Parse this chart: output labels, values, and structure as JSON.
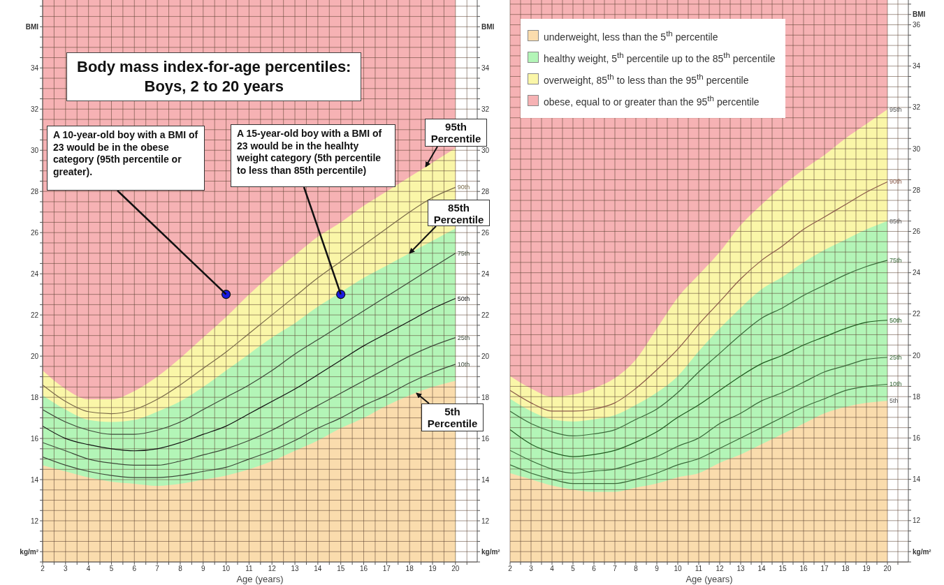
{
  "chart_data": [
    {
      "type": "line",
      "title": "Body mass index-for-age percentiles:\nBoys, 2 to 20 years",
      "xlabel": "Age (years)",
      "x": [
        2,
        3,
        4,
        5,
        6,
        7,
        8,
        9,
        10,
        11,
        12,
        13,
        14,
        15,
        16,
        17,
        18,
        19,
        20
      ],
      "xlim": [
        2,
        20.95
      ],
      "xticks": [
        2,
        {
          "value": 2.5,
          "label": null
        },
        3,
        {
          "value": 3.5,
          "label": null
        },
        4,
        {
          "value": 4.5,
          "label": null
        },
        5,
        {
          "value": 5.5,
          "label": null
        },
        6,
        {
          "value": 6.5,
          "label": null
        },
        7,
        {
          "value": 7.5,
          "label": null
        },
        8,
        {
          "value": 8.5,
          "label": null
        },
        9,
        {
          "value": 9.5,
          "label": null
        },
        10,
        {
          "value": 10.5,
          "label": null
        },
        11,
        {
          "value": 11.5,
          "label": null
        },
        12,
        {
          "value": 12.5,
          "label": null
        },
        13,
        {
          "value": 13.5,
          "label": null
        },
        14,
        {
          "value": 14.5,
          "label": null
        },
        15,
        {
          "value": 15.5,
          "label": null
        },
        16,
        {
          "value": 16.5,
          "label": null
        },
        17,
        {
          "value": 17.5,
          "label": null
        },
        18,
        {
          "value": 18.5,
          "label": null
        },
        19,
        {
          "value": 19.5,
          "label": null
        },
        20,
        {
          "value": 20.5,
          "label": null
        }
      ],
      "ylim": [
        10,
        37.3
      ],
      "yticks": [
        {
          "value": 10,
          "label": null
        },
        {
          "value": 10.5,
          "label": "kg/m²"
        },
        {
          "value": 11,
          "label": null
        },
        {
          "value": 11.5,
          "label": null
        },
        12,
        {
          "value": 12.5,
          "label": null
        },
        {
          "value": 13,
          "label": null
        },
        {
          "value": 13.5,
          "label": null
        },
        14,
        {
          "value": 14.5,
          "label": null
        },
        {
          "value": 15,
          "label": null
        },
        {
          "value": 15.5,
          "label": null
        },
        16,
        {
          "value": 16.5,
          "label": null
        },
        {
          "value": 17,
          "label": null
        },
        {
          "value": 17.5,
          "label": null
        },
        18,
        {
          "value": 18.5,
          "label": null
        },
        {
          "value": 19,
          "label": null
        },
        {
          "value": 19.5,
          "label": null
        },
        20,
        {
          "value": 20.5,
          "label": null
        },
        {
          "value": 21,
          "label": null
        },
        {
          "value": 21.5,
          "label": null
        },
        22,
        {
          "value": 22.5,
          "label": null
        },
        {
          "value": 23,
          "label": null
        },
        {
          "value": 23.5,
          "label": null
        },
        24,
        {
          "value": 24.5,
          "label": null
        },
        {
          "value": 25,
          "label": null
        },
        {
          "value": 25.5,
          "label": null
        },
        26,
        {
          "value": 26.5,
          "label": null
        },
        {
          "value": 27,
          "label": null
        },
        {
          "value": 27.5,
          "label": null
        },
        28,
        {
          "value": 28.5,
          "label": null
        },
        {
          "value": 29,
          "label": null
        },
        {
          "value": 29.5,
          "label": null
        },
        30,
        {
          "value": 30.5,
          "label": null
        },
        {
          "value": 31,
          "label": null
        },
        {
          "value": 31.5,
          "label": null
        },
        32,
        {
          "value": 32.5,
          "label": null
        },
        {
          "value": 33,
          "label": null
        },
        {
          "value": 33.5,
          "label": null
        },
        34,
        {
          "value": 34.5,
          "label": null
        },
        {
          "value": 35,
          "label": null
        },
        {
          "value": 35.5,
          "label": null
        },
        {
          "value": 36,
          "label": "BMI"
        },
        {
          "value": 36.5,
          "label": null
        },
        {
          "value": 37,
          "label": null
        }
      ],
      "y2lim": [
        10,
        37.3
      ],
      "y2ticks": [
        {
          "value": 10,
          "label": null
        },
        {
          "value": 10.5,
          "label": "kg/m²"
        },
        {
          "value": 11,
          "label": null
        },
        {
          "value": 11.5,
          "label": null
        },
        12,
        {
          "value": 12.5,
          "label": null
        },
        {
          "value": 13,
          "label": null
        },
        {
          "value": 13.5,
          "label": null
        },
        14,
        {
          "value": 14.5,
          "label": null
        },
        {
          "value": 15,
          "label": null
        },
        {
          "value": 15.5,
          "label": null
        },
        16,
        {
          "value": 16.5,
          "label": null
        },
        {
          "value": 17,
          "label": null
        },
        {
          "value": 17.5,
          "label": null
        },
        18,
        {
          "value": 18.5,
          "label": null
        },
        {
          "value": 19,
          "label": null
        },
        {
          "value": 19.5,
          "label": null
        },
        20,
        {
          "value": 20.5,
          "label": null
        },
        {
          "value": 21,
          "label": null
        },
        {
          "value": 21.5,
          "label": null
        },
        22,
        {
          "value": 22.5,
          "label": null
        },
        {
          "value": 23,
          "label": null
        },
        {
          "value": 23.5,
          "label": null
        },
        24,
        {
          "value": 24.5,
          "label": null
        },
        {
          "value": 25,
          "label": null
        },
        {
          "value": 25.5,
          "label": null
        },
        26,
        {
          "value": 26.5,
          "label": null
        },
        {
          "value": 27,
          "label": null
        },
        {
          "value": 27.5,
          "label": null
        },
        28,
        {
          "value": 28.5,
          "label": null
        },
        {
          "value": 29,
          "label": null
        },
        {
          "value": 29.5,
          "label": null
        },
        30,
        {
          "value": 30.5,
          "label": null
        },
        {
          "value": 31,
          "label": null
        },
        {
          "value": 31.5,
          "label": null
        },
        32,
        {
          "value": 32.5,
          "label": null
        },
        {
          "value": 33,
          "label": null
        },
        {
          "value": 33.5,
          "label": null
        },
        34,
        {
          "value": 34.5,
          "label": null
        },
        {
          "value": 35,
          "label": null
        },
        {
          "value": 35.5,
          "label": null
        },
        {
          "value": 36,
          "label": "BMI"
        },
        {
          "value": 36.5,
          "label": null
        },
        {
          "value": 37,
          "label": null
        }
      ],
      "grid": true,
      "bands": [
        {
          "axis": "y",
          "from": 10,
          "to": 37.3,
          "color": "#f6b2b4"
        }
      ],
      "series": [
        {
          "type": "area",
          "color": "#fadcad",
          "values": [
            14.7,
            14.4,
            14.1,
            13.9,
            13.8,
            13.7,
            13.8,
            14.0,
            14.2,
            14.5,
            14.9,
            15.4,
            15.9,
            16.5,
            17.0,
            17.6,
            18.1,
            18.5,
            18.8
          ]
        },
        {
          "type": "area",
          "color": "#b3f5b7",
          "values": [
            18.1,
            17.4,
            16.9,
            16.8,
            16.9,
            17.3,
            17.8,
            18.5,
            19.3,
            20.1,
            20.9,
            21.6,
            22.4,
            23.1,
            23.8,
            24.4,
            25.0,
            25.6,
            26.2
          ]
        },
        {
          "type": "area",
          "color": "#faf6a8",
          "values": [
            19.3,
            18.4,
            17.9,
            17.9,
            18.3,
            19.0,
            19.9,
            20.9,
            21.9,
            23.0,
            24.0,
            24.9,
            25.8,
            26.5,
            27.3,
            28.0,
            28.7,
            29.4,
            30.1
          ]
        },
        {
          "name": "10th",
          "color": "#3e4a3a",
          "values": [
            15.1,
            14.7,
            14.4,
            14.2,
            14.1,
            14.1,
            14.2,
            14.4,
            14.6,
            15.0,
            15.4,
            15.9,
            16.5,
            17.0,
            17.6,
            18.1,
            18.7,
            19.2,
            19.6
          ]
        },
        {
          "name": "25th",
          "color": "#3e4a3a",
          "values": [
            15.8,
            15.4,
            15.0,
            14.8,
            14.7,
            14.7,
            14.9,
            15.2,
            15.5,
            15.9,
            16.4,
            17.0,
            17.6,
            18.2,
            18.8,
            19.4,
            20.0,
            20.5,
            20.9
          ]
        },
        {
          "name": "50th",
          "color": "#111111",
          "values": [
            16.6,
            16.0,
            15.7,
            15.5,
            15.4,
            15.5,
            15.8,
            16.2,
            16.6,
            17.2,
            17.8,
            18.4,
            19.1,
            19.8,
            20.5,
            21.1,
            21.7,
            22.3,
            22.8
          ]
        },
        {
          "name": "75th",
          "color": "#3e4a3a",
          "values": [
            17.4,
            16.8,
            16.4,
            16.2,
            16.2,
            16.4,
            16.8,
            17.4,
            18.0,
            18.6,
            19.3,
            20.1,
            20.8,
            21.5,
            22.2,
            22.9,
            23.6,
            24.3,
            25.0
          ]
        },
        {
          "name": "90th",
          "color": "#7a6a4a",
          "values": [
            18.6,
            17.8,
            17.3,
            17.2,
            17.4,
            17.9,
            18.6,
            19.4,
            20.2,
            21.1,
            22.0,
            22.9,
            23.8,
            24.6,
            25.4,
            26.2,
            27.0,
            27.7,
            28.2
          ]
        },
        {
          "type": "scatter",
          "color": "#1a1ae0",
          "marker": "circle",
          "x": [
            10,
            15
          ],
          "values": [
            23,
            23
          ]
        }
      ],
      "annotations": [
        "A 10-year-old boy with a BMI of 23 would be in the obese category (95th percentile or greater).",
        {
          "text": "A 15-year-old boy with a BMI of 23 would be in the healhty weight category (5th percentile to less than 85th percentile)",
          "x": 15,
          "y": 23
        },
        {
          "text": "95th Percentile",
          "x": 18.7,
          "y": 29.2
        },
        {
          "text": "85th Percentile",
          "x": 18,
          "y": 25.0
        },
        {
          "text": "5th Percentile",
          "x": 18.3,
          "y": 18.2
        }
      ]
    },
    {
      "type": "line",
      "xlabel": "Age (years)",
      "x": [
        2,
        3,
        4,
        5,
        6,
        7,
        8,
        9,
        10,
        11,
        12,
        13,
        14,
        15,
        16,
        17,
        18,
        19,
        20
      ],
      "xlim": [
        2,
        21
      ],
      "xticks": [
        2,
        {
          "value": 2.5,
          "label": null
        },
        3,
        {
          "value": 3.5,
          "label": null
        },
        4,
        {
          "value": 4.5,
          "label": null
        },
        5,
        {
          "value": 5.5,
          "label": null
        },
        6,
        {
          "value": 6.5,
          "label": null
        },
        7,
        {
          "value": 7.5,
          "label": null
        },
        8,
        {
          "value": 8.5,
          "label": null
        },
        9,
        {
          "value": 9.5,
          "label": null
        },
        10,
        {
          "value": 10.5,
          "label": null
        },
        11,
        {
          "value": 11.5,
          "label": null
        },
        12,
        {
          "value": 12.5,
          "label": null
        },
        13,
        {
          "value": 13.5,
          "label": null
        },
        14,
        {
          "value": 14.5,
          "label": null
        },
        15,
        {
          "value": 15.5,
          "label": null
        },
        16,
        {
          "value": 16.5,
          "label": null
        },
        17,
        {
          "value": 17.5,
          "label": null
        },
        18,
        {
          "value": 18.5,
          "label": null
        },
        19,
        {
          "value": 19.5,
          "label": null
        },
        20,
        {
          "value": 20.5,
          "label": null
        }
      ],
      "ylim": [
        10,
        37.2
      ],
      "yticks": [
        {
          "value": 10,
          "label": null
        },
        {
          "value": 10.5,
          "label": "kg/m²"
        },
        {
          "value": 11,
          "label": null
        },
        {
          "value": 11.5,
          "label": null
        },
        12,
        {
          "value": 12.5,
          "label": null
        },
        {
          "value": 13,
          "label": null
        },
        {
          "value": 13.5,
          "label": null
        },
        14,
        {
          "value": 14.5,
          "label": null
        },
        {
          "value": 15,
          "label": null
        },
        {
          "value": 15.5,
          "label": null
        },
        16,
        {
          "value": 16.5,
          "label": null
        },
        {
          "value": 17,
          "label": null
        },
        {
          "value": 17.5,
          "label": null
        },
        18,
        {
          "value": 18.5,
          "label": null
        },
        {
          "value": 19,
          "label": null
        },
        {
          "value": 19.5,
          "label": null
        },
        20,
        {
          "value": 20.5,
          "label": null
        },
        {
          "value": 21,
          "label": null
        },
        {
          "value": 21.5,
          "label": null
        },
        22,
        {
          "value": 22.5,
          "label": null
        },
        {
          "value": 23,
          "label": null
        },
        {
          "value": 23.5,
          "label": null
        },
        24,
        {
          "value": 24.5,
          "label": null
        },
        {
          "value": 25,
          "label": null
        },
        {
          "value": 25.5,
          "label": null
        },
        26,
        {
          "value": 26.5,
          "label": null
        },
        {
          "value": 27,
          "label": null
        },
        {
          "value": 27.5,
          "label": null
        },
        28,
        {
          "value": 28.5,
          "label": null
        },
        {
          "value": 29,
          "label": null
        },
        {
          "value": 29.5,
          "label": null
        },
        30,
        {
          "value": 30.5,
          "label": null
        },
        {
          "value": 31,
          "label": null
        },
        {
          "value": 31.5,
          "label": null
        },
        32,
        {
          "value": 32.5,
          "label": null
        },
        {
          "value": 33,
          "label": null
        },
        {
          "value": 33.5,
          "label": null
        },
        34,
        {
          "value": 34.5,
          "label": null
        },
        {
          "value": 35,
          "label": null
        },
        {
          "value": 35.5,
          "label": null
        },
        36,
        {
          "value": 36.5,
          "label": "BMI"
        },
        {
          "value": 37,
          "label": null
        }
      ],
      "grid": true,
      "legend": "top left",
      "bands": [
        {
          "axis": "y",
          "from": 10,
          "to": 37.2,
          "color": "#f6b2b4",
          "label": "obese, equal to or greater than the 95$^{th}$ percentile"
        }
      ],
      "series": [
        {
          "type": "area",
          "name": "underweight, less than the 5$^{th}$ percentile",
          "color": "#fadcad",
          "values": [
            14.3,
            14.0,
            13.7,
            13.5,
            13.4,
            13.4,
            13.6,
            13.8,
            14.1,
            14.3,
            14.8,
            15.2,
            15.7,
            16.2,
            16.7,
            17.2,
            17.5,
            17.7,
            17.8
          ]
        },
        {
          "type": "area",
          "name": "healthy weight, 5$^{th}$ percentile up to the 85$^{th}$ percentile",
          "color": "#b3f5b7",
          "values": [
            17.9,
            17.3,
            16.9,
            16.8,
            16.9,
            17.1,
            17.6,
            18.2,
            19.0,
            20.2,
            21.3,
            22.3,
            23.2,
            23.8,
            24.5,
            25.1,
            25.6,
            26.1,
            26.5
          ]
        },
        {
          "type": "area",
          "name": "overweight, 85$^{th}$ to less than the 95$^{th}$ percentile",
          "color": "#faf6a8",
          "values": [
            19.0,
            18.4,
            18.0,
            18.1,
            18.4,
            18.9,
            19.8,
            21.3,
            22.8,
            23.9,
            25.0,
            26.3,
            27.3,
            28.2,
            29.0,
            29.7,
            30.5,
            31.2,
            31.9
          ]
        },
        {
          "name": "10th",
          "color": "#3a6a3a",
          "values": [
            14.7,
            14.3,
            14.0,
            13.8,
            13.8,
            13.8,
            14.0,
            14.3,
            14.7,
            15.0,
            15.5,
            16.0,
            16.5,
            17.0,
            17.5,
            17.9,
            18.3,
            18.5,
            18.6
          ]
        },
        {
          "name": "25th",
          "color": "#3a6a3a",
          "values": [
            15.4,
            14.9,
            14.5,
            14.3,
            14.4,
            14.5,
            14.8,
            15.1,
            15.6,
            16.0,
            16.7,
            17.2,
            17.8,
            18.2,
            18.7,
            19.2,
            19.5,
            19.8,
            19.9
          ]
        },
        {
          "name": "50th",
          "color": "#1e5a1e",
          "values": [
            16.4,
            15.7,
            15.3,
            15.1,
            15.2,
            15.4,
            15.8,
            16.3,
            17.0,
            17.6,
            18.3,
            19.0,
            19.6,
            20.0,
            20.5,
            20.9,
            21.3,
            21.6,
            21.7
          ]
        },
        {
          "name": "75th",
          "color": "#3a6a3a",
          "values": [
            17.3,
            16.7,
            16.3,
            16.1,
            16.2,
            16.4,
            16.9,
            17.4,
            18.2,
            19.2,
            20.1,
            21.0,
            21.8,
            22.3,
            22.9,
            23.4,
            23.9,
            24.3,
            24.6
          ]
        },
        {
          "name": "90th",
          "color": "#8a5a4a",
          "values": [
            18.3,
            17.7,
            17.3,
            17.3,
            17.4,
            17.7,
            18.4,
            19.3,
            20.3,
            21.5,
            22.6,
            23.7,
            24.6,
            25.3,
            26.1,
            26.7,
            27.3,
            27.9,
            28.4
          ]
        }
      ],
      "annotations": [
        {
          "text": "95th",
          "x": 20,
          "y": 31.9
        },
        {
          "text": "85th",
          "x": 20,
          "y": 26.5
        },
        {
          "text": "5th",
          "x": 20,
          "y": 17.8
        }
      ]
    }
  ]
}
